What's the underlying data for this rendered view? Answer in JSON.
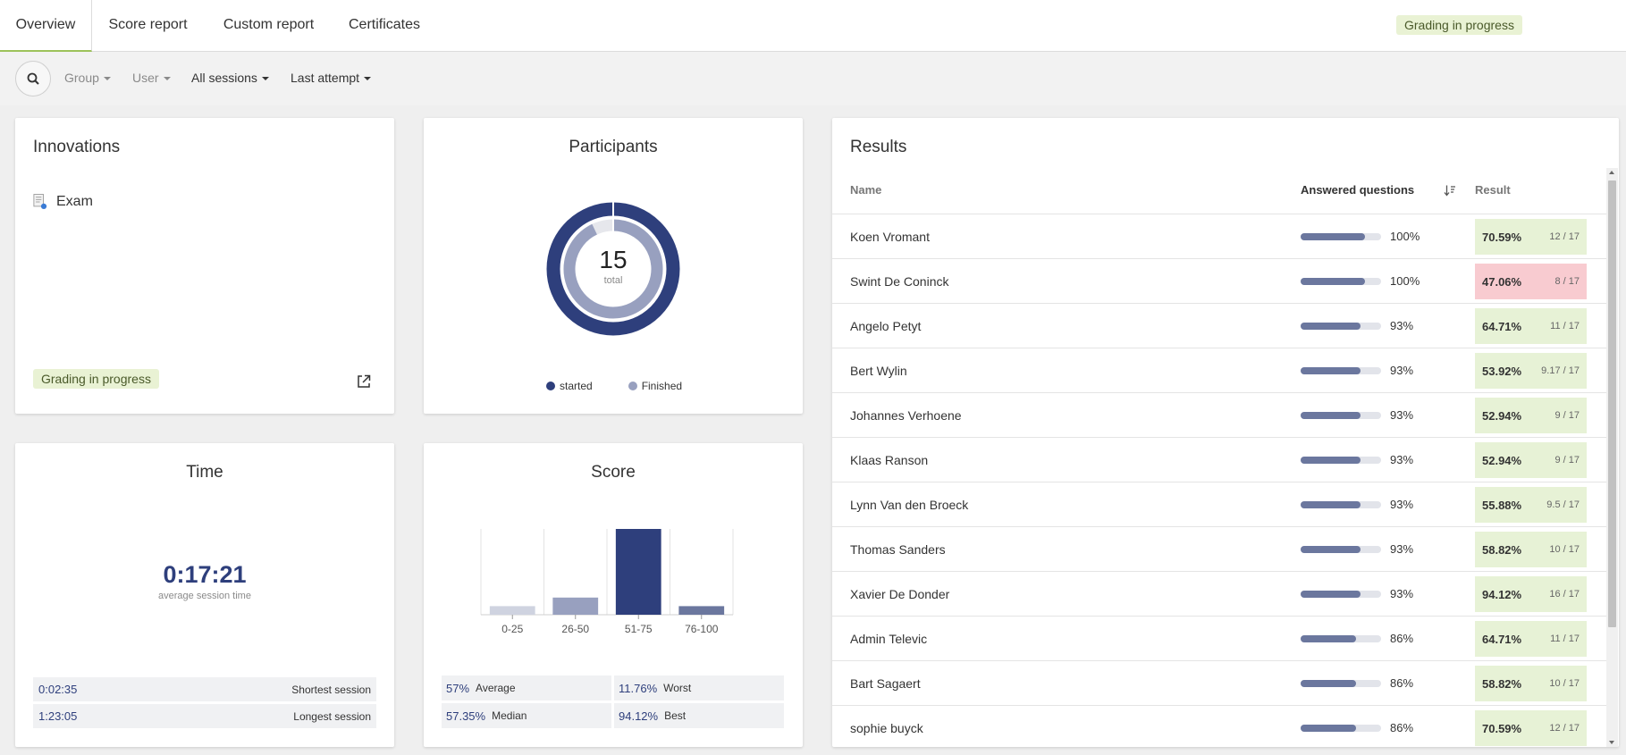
{
  "tabs": [
    {
      "label": "Overview",
      "active": true
    },
    {
      "label": "Score report"
    },
    {
      "label": "Custom report"
    },
    {
      "label": "Certificates"
    }
  ],
  "status_badge": "Grading in progress",
  "filters": {
    "group": "Group",
    "user": "User",
    "sessions": "All sessions",
    "attempt": "Last attempt"
  },
  "innovations": {
    "title": "Innovations",
    "item": "Exam",
    "badge": "Grading in progress"
  },
  "participants": {
    "title": "Participants",
    "total": "15",
    "total_label": "total",
    "legend": [
      {
        "label": "started",
        "color": "#2e3f7c"
      },
      {
        "label": "Finished",
        "color": "#98a0bf"
      }
    ],
    "colors": {
      "started": "#2e3f7c",
      "finished": "#98a0bf"
    }
  },
  "time": {
    "title": "Time",
    "average": "0:17:21",
    "average_label": "average session time",
    "shortest": {
      "value": "0:02:35",
      "label": "Shortest session"
    },
    "longest": {
      "value": "1:23:05",
      "label": "Longest session"
    }
  },
  "score": {
    "title": "Score",
    "stats": [
      {
        "value": "57%",
        "label": "Average"
      },
      {
        "value": "11.76%",
        "label": "Worst"
      },
      {
        "value": "57.35%",
        "label": "Median"
      },
      {
        "value": "94.12%",
        "label": "Best"
      }
    ]
  },
  "chart_data": {
    "type": "bar",
    "categories": [
      "0-25",
      "26-50",
      "51-75",
      "76-100"
    ],
    "values": [
      1,
      2,
      10,
      1
    ],
    "colors": [
      "#cfd3e0",
      "#98a0bf",
      "#2e3f7c",
      "#6b779e"
    ],
    "ylim": [
      0,
      10
    ],
    "grid": true
  },
  "results": {
    "title": "Results",
    "columns": {
      "name": "Name",
      "answered": "Answered questions",
      "result": "Result"
    },
    "rows": [
      {
        "name": "Koen Vromant",
        "answered": 100,
        "answered_label": "100%",
        "result": "70.59%",
        "score": "12 / 17",
        "passed": true
      },
      {
        "name": "Swint De Coninck",
        "answered": 100,
        "answered_label": "100%",
        "result": "47.06%",
        "score": "8 / 17",
        "passed": false
      },
      {
        "name": "Angelo Petyt",
        "answered": 93,
        "answered_label": "93%",
        "result": "64.71%",
        "score": "11 / 17",
        "passed": true
      },
      {
        "name": "Bert Wylin",
        "answered": 93,
        "answered_label": "93%",
        "result": "53.92%",
        "score": "9.17 / 17",
        "passed": true
      },
      {
        "name": "Johannes Verhoene",
        "answered": 93,
        "answered_label": "93%",
        "result": "52.94%",
        "score": "9 / 17",
        "passed": true
      },
      {
        "name": "Klaas Ranson",
        "answered": 93,
        "answered_label": "93%",
        "result": "52.94%",
        "score": "9 / 17",
        "passed": true
      },
      {
        "name": "Lynn Van den Broeck",
        "answered": 93,
        "answered_label": "93%",
        "result": "55.88%",
        "score": "9.5 / 17",
        "passed": true
      },
      {
        "name": "Thomas Sanders",
        "answered": 93,
        "answered_label": "93%",
        "result": "58.82%",
        "score": "10 / 17",
        "passed": true
      },
      {
        "name": "Xavier De Donder",
        "answered": 93,
        "answered_label": "93%",
        "result": "94.12%",
        "score": "16 / 17",
        "passed": true
      },
      {
        "name": "Admin Televic",
        "answered": 86,
        "answered_label": "86%",
        "result": "64.71%",
        "score": "11 / 17",
        "passed": true
      },
      {
        "name": "Bart Sagaert",
        "answered": 86,
        "answered_label": "86%",
        "result": "58.82%",
        "score": "10 / 17",
        "passed": true
      },
      {
        "name": "sophie buyck",
        "answered": 86,
        "answered_label": "86%",
        "result": "70.59%",
        "score": "12 / 17",
        "passed": true
      }
    ]
  }
}
